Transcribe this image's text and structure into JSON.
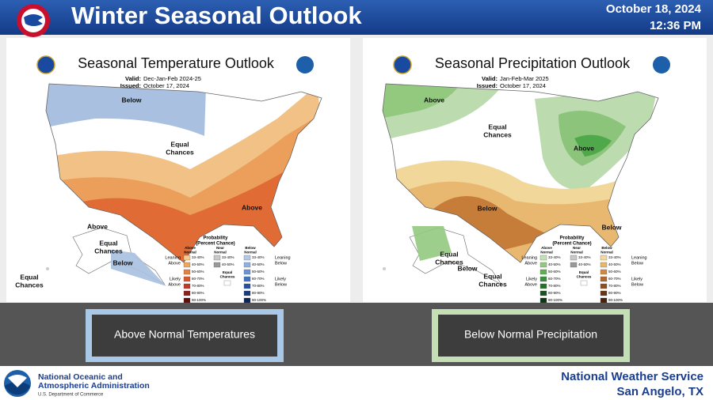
{
  "header": {
    "title": "Winter Seasonal Outlook",
    "date": "October 18, 2024",
    "time": "12:36 PM"
  },
  "panels": [
    {
      "title": "Seasonal Temperature Outlook",
      "valid_label": "Valid:",
      "valid": "Dec-Jan-Feb 2024-25",
      "issued_label": "Issued:",
      "issued": "October 17, 2024",
      "map_labels": [
        {
          "lines": [
            "Below"
          ]
        },
        {
          "lines": [
            "Equal",
            "Chances"
          ]
        },
        {
          "lines": [
            "Above"
          ]
        },
        {
          "lines": [
            "Above"
          ]
        },
        {
          "lines": [
            "Equal",
            "Chances"
          ]
        },
        {
          "lines": [
            "Below"
          ]
        },
        {
          "lines": [
            "Equal",
            "Chances"
          ]
        }
      ],
      "legend": {
        "title": [
          "Probability",
          "(Percent Chance)"
        ],
        "columns": [
          {
            "header": [
              "Above",
              "Normal"
            ],
            "ranges": [
              "33-40%",
              "40-50%",
              "50-60%",
              "60-70%",
              "70-80%",
              "80-90%",
              "90-100%"
            ],
            "colors": [
              "#f6c98e",
              "#eda65f",
              "#e5803e",
              "#d9582b",
              "#c0392b",
              "#8e1f1f",
              "#5c0f0f"
            ]
          },
          {
            "header": [
              "Near",
              "Normal"
            ],
            "ranges": [
              "33-40%",
              "40-50%"
            ],
            "colors": [
              "#c8c8c8",
              "#999999"
            ]
          },
          {
            "header": [
              "Below",
              "Normal"
            ],
            "ranges": [
              "33-40%",
              "40-50%",
              "50-60%",
              "60-70%",
              "70-80%",
              "80-90%",
              "90-100%"
            ],
            "colors": [
              "#b4c8e6",
              "#8fb0dc",
              "#6a95d0",
              "#3f74bf",
              "#24529e",
              "#1a3a7a",
              "#0f2455"
            ]
          }
        ],
        "equal_chances": [
          "Equal",
          "Chances"
        ],
        "side_left": [
          [
            "Leaning",
            "Above"
          ],
          [
            "Likely",
            "Above"
          ]
        ],
        "side_right": [
          [
            "Leaning",
            "Below"
          ],
          [
            "Likely",
            "Below"
          ]
        ]
      },
      "caption": "Above Normal Temperatures"
    },
    {
      "title": "Seasonal Precipitation Outlook",
      "valid_label": "Valid:",
      "valid": "Jan-Feb-Mar 2025",
      "issued_label": "Issued:",
      "issued": "October 17, 2024",
      "map_labels": [
        {
          "lines": [
            "Above"
          ]
        },
        {
          "lines": [
            "Equal",
            "Chances"
          ]
        },
        {
          "lines": [
            "Above"
          ]
        },
        {
          "lines": [
            "Below"
          ]
        },
        {
          "lines": [
            "Below"
          ]
        },
        {
          "lines": [
            "Equal",
            "Chances"
          ]
        },
        {
          "lines": [
            "Below"
          ]
        },
        {
          "lines": [
            "Equal",
            "Chances"
          ]
        }
      ],
      "legend": {
        "title": [
          "Probability",
          "(Percent Chance)"
        ],
        "columns": [
          {
            "header": [
              "Above",
              "Normal"
            ],
            "ranges": [
              "33-40%",
              "40-50%",
              "50-60%",
              "60-70%",
              "70-80%",
              "80-90%",
              "90-100%"
            ],
            "colors": [
              "#c2e2b4",
              "#93c97f",
              "#5fae52",
              "#3b8f3a",
              "#27702a",
              "#1a5220",
              "#0f3514"
            ]
          },
          {
            "header": [
              "Near",
              "Normal"
            ],
            "ranges": [
              "33-40%",
              "40-50%"
            ],
            "colors": [
              "#c8c8c8",
              "#999999"
            ]
          },
          {
            "header": [
              "Below",
              "Normal"
            ],
            "ranges": [
              "33-40%",
              "40-50%",
              "50-60%",
              "60-70%",
              "70-80%",
              "80-90%",
              "90-100%"
            ],
            "colors": [
              "#f1d9a0",
              "#e6b86c",
              "#cf8a40",
              "#b0692c",
              "#8c4f20",
              "#683716",
              "#45230d"
            ]
          }
        ],
        "equal_chances": [
          "Equal",
          "Chances"
        ],
        "side_left": [
          [
            "Leaning",
            "Above"
          ],
          [
            "Likely",
            "Above"
          ]
        ],
        "side_right": [
          [
            "Leaning",
            "Below"
          ],
          [
            "Likely",
            "Below"
          ]
        ]
      },
      "caption": "Below Normal Precipitation"
    }
  ],
  "footer": {
    "agency": [
      "National Oceanic and",
      "Atmospheric Administration"
    ],
    "department": "U.S. Department of Commerce",
    "office": [
      "National Weather Service",
      "San Angelo, TX"
    ]
  }
}
